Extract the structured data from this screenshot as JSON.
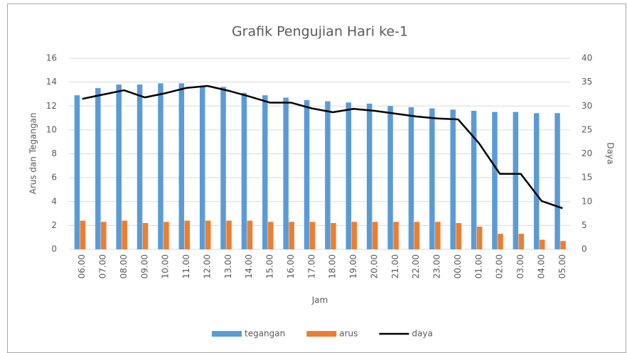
{
  "chart_data": {
    "type": "bar-line",
    "title": "Grafik Pengujian Hari ke-1",
    "x_label": "Jam",
    "y_label": "Arus dan Tegangan",
    "y2_label": "Daya",
    "categories": [
      "06.00",
      "07.00",
      "08.00",
      "09.00",
      "10.00",
      "11.00",
      "12.00",
      "13.00",
      "14.00",
      "15.00",
      "16.00",
      "17.00",
      "18.00",
      "19.00",
      "20.00",
      "21.00",
      "22.00",
      "23.00",
      "00.00",
      "01.00",
      "02.00",
      "03.00",
      "04.00",
      "05.00"
    ],
    "series": [
      {
        "name": "tegangan",
        "type": "bar",
        "color": "#5b9bd5",
        "values": [
          12.9,
          13.5,
          13.8,
          13.8,
          13.9,
          13.9,
          13.7,
          13.6,
          13.1,
          12.9,
          12.7,
          12.5,
          12.4,
          12.3,
          12.2,
          12.0,
          11.9,
          11.8,
          11.7,
          11.6,
          11.5,
          11.5,
          11.4,
          11.4
        ]
      },
      {
        "name": "arus",
        "type": "bar",
        "color": "#ed7d31",
        "values": [
          2.4,
          2.3,
          2.4,
          2.2,
          2.3,
          2.4,
          2.4,
          2.4,
          2.4,
          2.3,
          2.3,
          2.3,
          2.2,
          2.3,
          2.3,
          2.3,
          2.3,
          2.3,
          2.2,
          1.9,
          1.3,
          1.3,
          0.8,
          0.7
        ]
      },
      {
        "name": "daya",
        "type": "line",
        "axis": "y2",
        "color": "#000000",
        "values": [
          31.5,
          32.4,
          33.3,
          31.8,
          32.7,
          33.8,
          34.2,
          33.2,
          32.0,
          30.7,
          30.7,
          29.5,
          28.7,
          29.4,
          29.0,
          28.4,
          27.8,
          27.4,
          27.2,
          22.2,
          15.8,
          15.8,
          10.1,
          8.6
        ]
      }
    ],
    "ylim": [
      0,
      16
    ],
    "yticks": [
      0,
      2,
      4,
      6,
      8,
      10,
      12,
      14,
      16
    ],
    "y2lim": [
      0,
      40
    ],
    "y2ticks": [
      0,
      5,
      10,
      15,
      20,
      25,
      30,
      35,
      40
    ],
    "grid": true,
    "legend": "bottom"
  }
}
